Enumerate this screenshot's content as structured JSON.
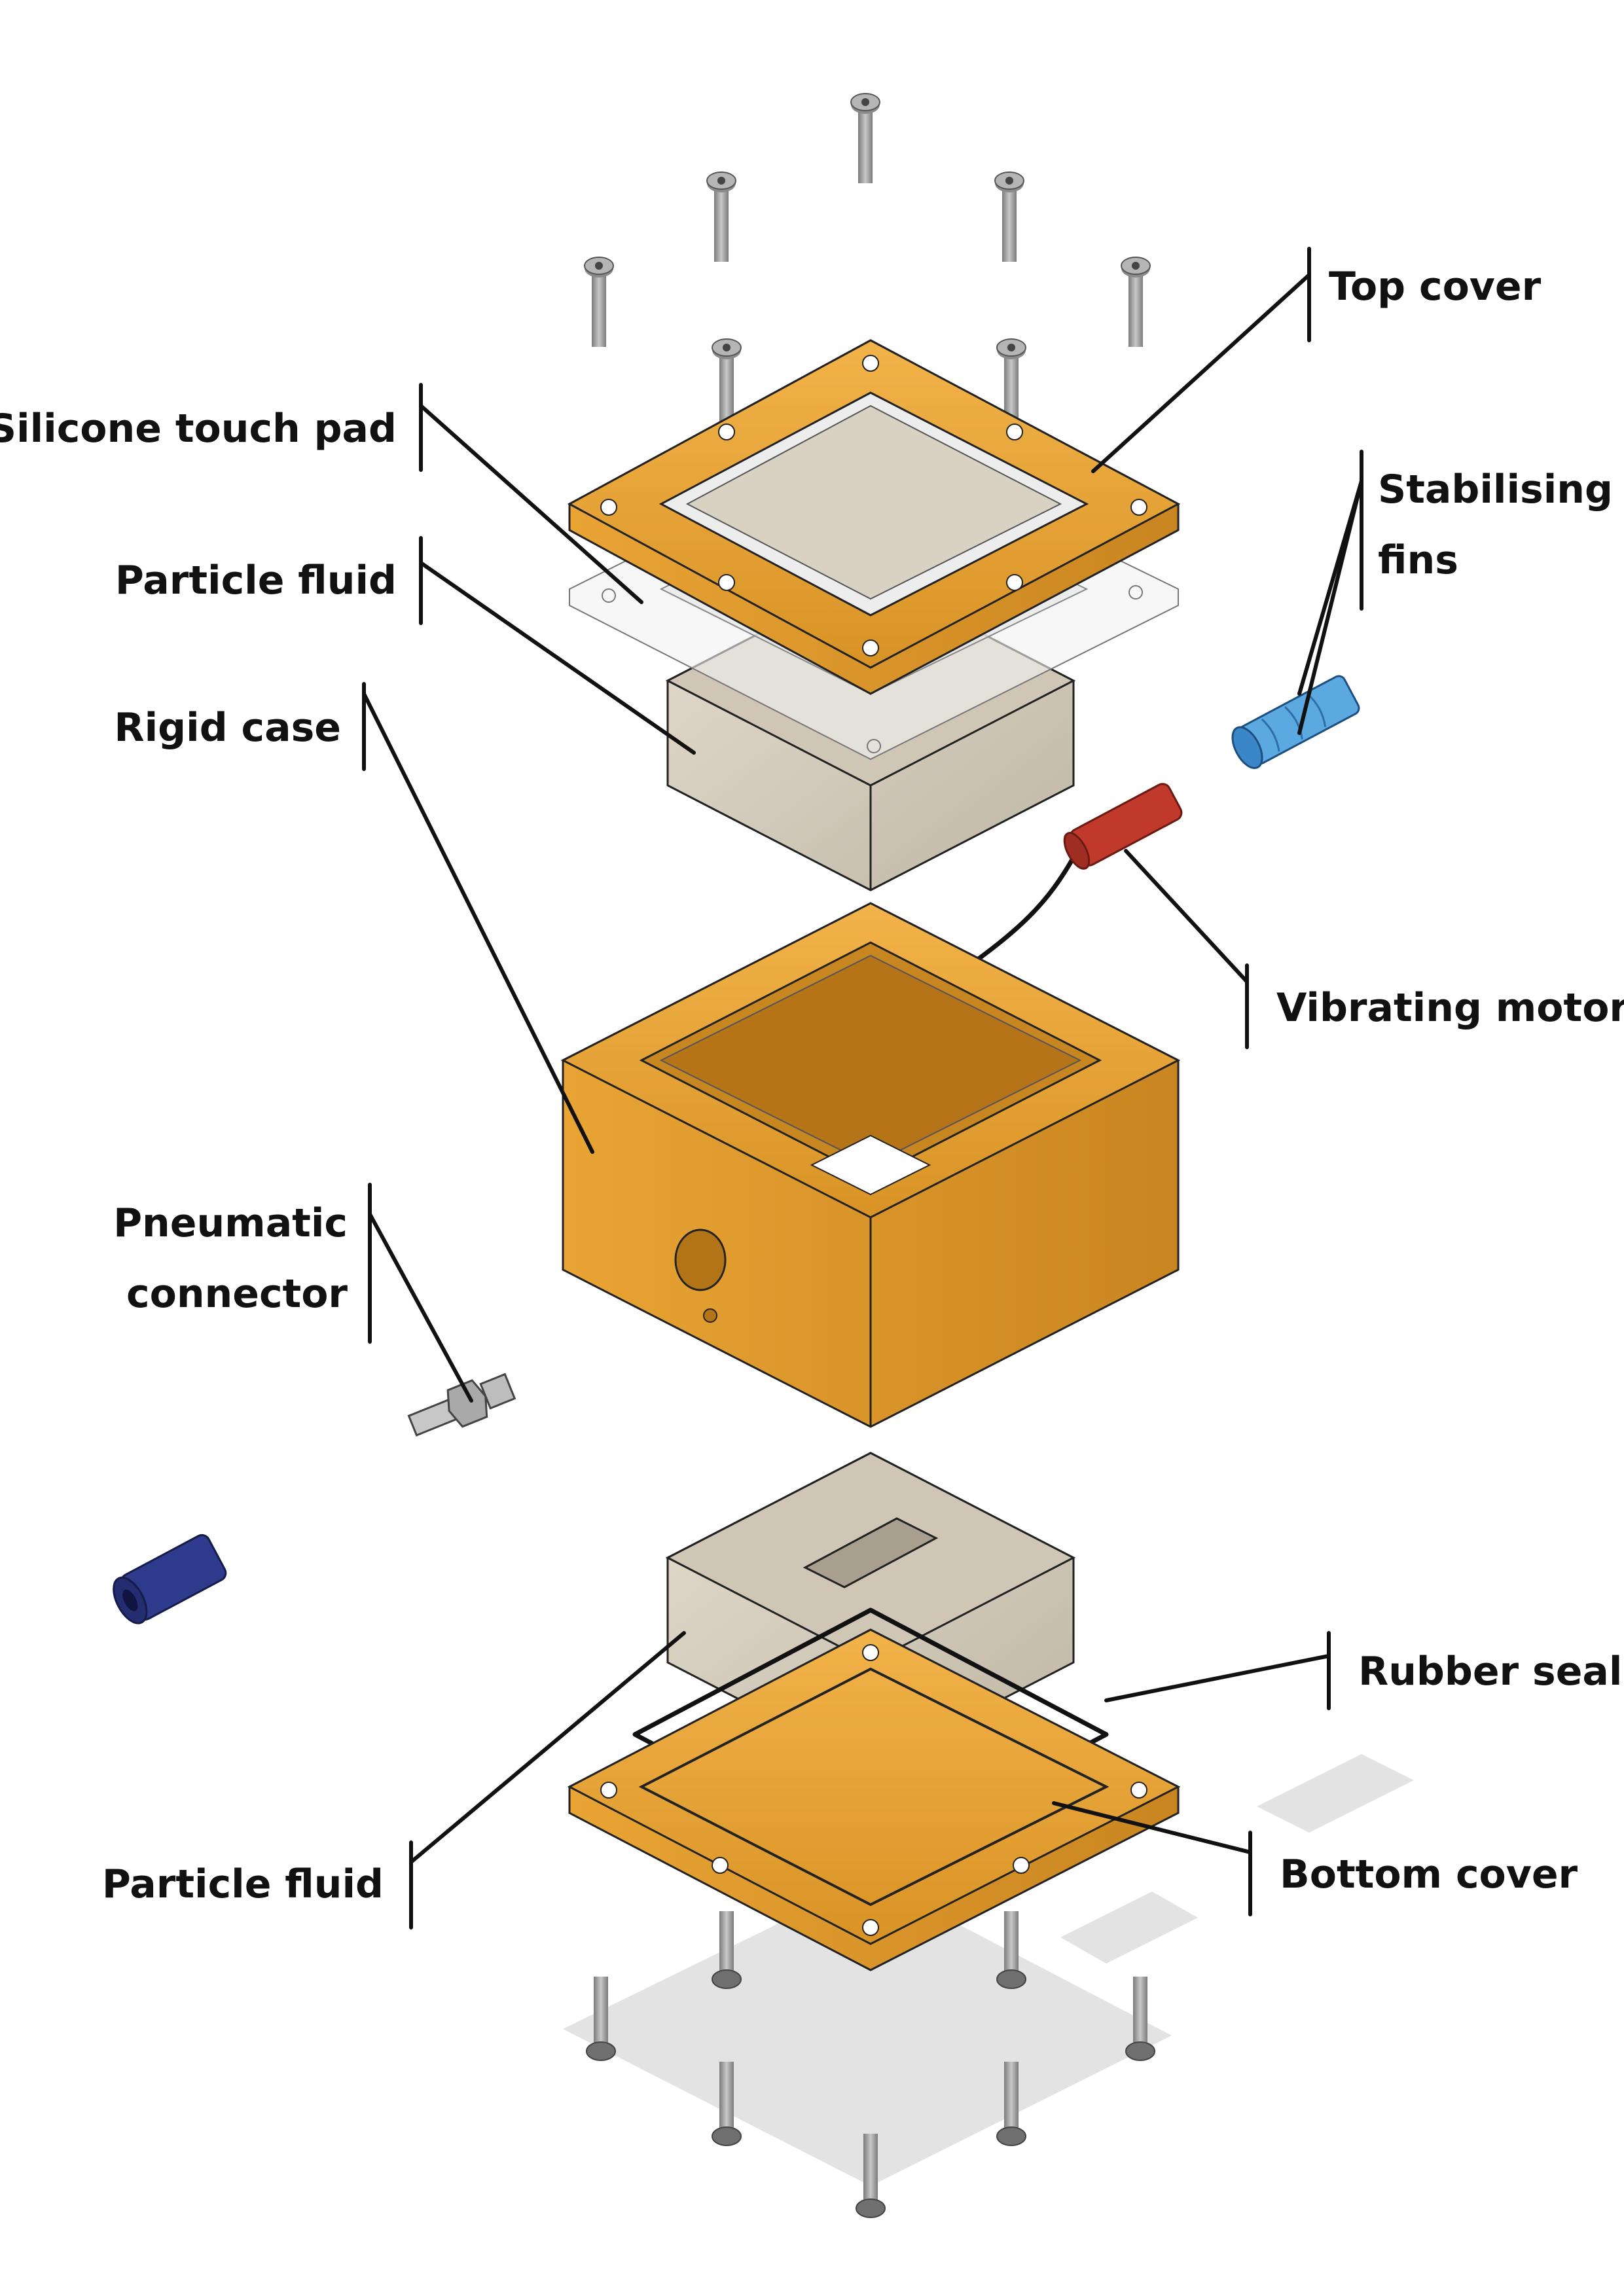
{
  "labels": {
    "top_cover": "Top cover",
    "silicone_touch_pad": "Silicone touch pad",
    "stabilising_fins_line1": "Stabilising",
    "stabilising_fins_line2": "fins",
    "particle_fluid_top": "Particle fluid",
    "rigid_case": "Rigid case",
    "vibrating_motor": "Vibrating motor",
    "pneumatic_connector_line1": "Pneumatic",
    "pneumatic_connector_line2": "connector",
    "rubber_seal": "Rubber seal",
    "bottom_cover": "Bottom cover",
    "particle_fluid_bottom": "Particle fluid"
  },
  "colors": {
    "orange": "#E8A33A",
    "orange_dark": "#C98520",
    "sand": "#D4CCBD",
    "sand_dark": "#B7AE9E",
    "blue_light": "#5CA8E0",
    "blue_dark": "#2E3A8C",
    "red": "#C0392B",
    "screw": "#9E9E9E",
    "leader": "#111111"
  }
}
